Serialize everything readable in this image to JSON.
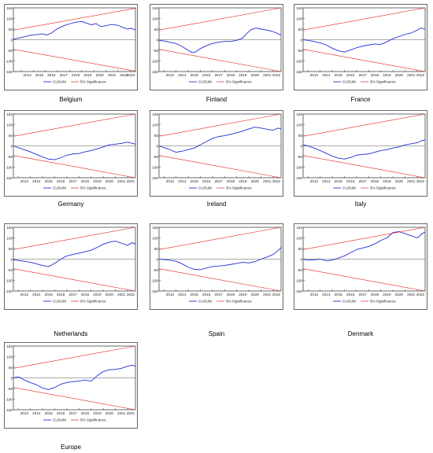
{
  "legend": {
    "cusum_label": "CUSUM",
    "sig_label": "5% Significance",
    "cusum_color": "#1f2fd6",
    "sig_color": "#e2231a"
  },
  "chart_data": [
    {
      "type": "line",
      "caption": "Belgium",
      "years": [
        "2014",
        "2015",
        "2016",
        "2017",
        "2018",
        "2019",
        "2020",
        "2021",
        "2022",
        "2023"
      ],
      "x_start": 2013.35,
      "x_end": 2023.45,
      "ylim": [
        -150,
        150
      ],
      "yticks": [
        150,
        100,
        50,
        0,
        -50,
        -100,
        -150
      ],
      "series": [
        {
          "name": "CUSUM",
          "x": [
            2013.35,
            2013.8,
            2014.3,
            2014.8,
            2015.3,
            2015.8,
            2016.1,
            2016.5,
            2017.0,
            2017.5,
            2018.0,
            2018.5,
            2019.0,
            2019.4,
            2019.8,
            2020.2,
            2020.6,
            2021.0,
            2021.5,
            2022.0,
            2022.4,
            2022.8,
            2023.1,
            2023.45
          ],
          "y": [
            2,
            8,
            14,
            22,
            24,
            28,
            22,
            32,
            52,
            65,
            75,
            82,
            86,
            78,
            70,
            76,
            62,
            66,
            72,
            68,
            58,
            50,
            54,
            46
          ]
        },
        {
          "name": "5% Significance",
          "x": [
            2013.35,
            2023.45
          ],
          "y": [
            45,
            148
          ]
        },
        {
          "name": "5% Significance",
          "x": [
            2013.35,
            2023.45
          ],
          "y": [
            -45,
            -148
          ]
        }
      ]
    },
    {
      "type": "line",
      "caption": "Finland",
      "years": [
        "2013",
        "2014",
        "2015",
        "2016",
        "2017",
        "2018",
        "2019",
        "2020",
        "2021",
        "2022"
      ],
      "x_start": 2012.6,
      "x_end": 2022.65,
      "ylim": [
        -150,
        150
      ],
      "yticks": [
        150,
        100,
        50,
        0,
        -50,
        -100,
        -150
      ],
      "series": [
        {
          "name": "CUSUM",
          "x": [
            2012.6,
            2013.0,
            2013.5,
            2014.0,
            2014.5,
            2015.0,
            2015.3,
            2015.6,
            2016.0,
            2016.5,
            2017.0,
            2017.5,
            2018.0,
            2018.5,
            2019.0,
            2019.5,
            2019.8,
            2020.2,
            2020.6,
            2021.0,
            2021.5,
            2022.0,
            2022.4,
            2022.65
          ],
          "y": [
            -3,
            -6,
            -12,
            -18,
            -32,
            -50,
            -60,
            -58,
            -42,
            -28,
            -18,
            -12,
            -8,
            -8,
            -3,
            8,
            28,
            48,
            55,
            50,
            45,
            38,
            28,
            22
          ]
        },
        {
          "name": "5% Significance",
          "x": [
            2012.6,
            2022.65
          ],
          "y": [
            45,
            150
          ]
        },
        {
          "name": "5% Significance",
          "x": [
            2012.6,
            2022.65
          ],
          "y": [
            -45,
            -150
          ]
        }
      ]
    },
    {
      "type": "line",
      "caption": "France",
      "years": [
        "2013",
        "2014",
        "2015",
        "2016",
        "2017",
        "2018",
        "2019",
        "2020",
        "2021",
        "2022"
      ],
      "x_start": 2012.6,
      "x_end": 2022.65,
      "ylim": [
        -150,
        150
      ],
      "yticks": [
        150,
        100,
        50,
        0,
        -50,
        -100,
        -150
      ],
      "series": [
        {
          "name": "CUSUM",
          "x": [
            2012.6,
            2013.0,
            2013.5,
            2014.0,
            2014.5,
            2015.0,
            2015.5,
            2016.0,
            2016.5,
            2017.0,
            2017.5,
            2018.0,
            2018.5,
            2019.0,
            2019.5,
            2020.0,
            2020.5,
            2021.0,
            2021.5,
            2022.0,
            2022.3,
            2022.65
          ],
          "y": [
            0,
            -3,
            -8,
            -15,
            -25,
            -40,
            -52,
            -58,
            -48,
            -38,
            -30,
            -25,
            -20,
            -22,
            -10,
            5,
            15,
            25,
            32,
            45,
            55,
            50
          ]
        },
        {
          "name": "5% Significance",
          "x": [
            2012.6,
            2022.65
          ],
          "y": [
            45,
            150
          ]
        },
        {
          "name": "5% Significance",
          "x": [
            2012.6,
            2022.65
          ],
          "y": [
            -45,
            -150
          ]
        }
      ]
    },
    {
      "type": "line",
      "caption": "Germany",
      "years": [
        "2013",
        "2014",
        "2015",
        "2016",
        "2017",
        "2018",
        "2019",
        "2020",
        "2021",
        "2022"
      ],
      "x_start": 2012.6,
      "x_end": 2022.65,
      "ylim": [
        -150,
        150
      ],
      "yticks": [
        150,
        100,
        50,
        0,
        -50,
        -100,
        -150
      ],
      "series": [
        {
          "name": "CUSUM",
          "x": [
            2012.6,
            2013.0,
            2013.5,
            2014.0,
            2014.5,
            2015.0,
            2015.5,
            2016.0,
            2016.5,
            2017.0,
            2017.5,
            2018.0,
            2018.5,
            2019.0,
            2019.5,
            2020.0,
            2020.5,
            2021.0,
            2021.5,
            2022.0,
            2022.4,
            2022.65
          ],
          "y": [
            0,
            -8,
            -18,
            -28,
            -40,
            -52,
            -62,
            -65,
            -56,
            -44,
            -38,
            -36,
            -28,
            -22,
            -14,
            -5,
            5,
            8,
            12,
            18,
            12,
            8
          ]
        },
        {
          "name": "5% Significance",
          "x": [
            2012.6,
            2022.65
          ],
          "y": [
            45,
            150
          ]
        },
        {
          "name": "5% Significance",
          "x": [
            2012.6,
            2022.65
          ],
          "y": [
            -45,
            -150
          ]
        }
      ]
    },
    {
      "type": "line",
      "caption": "Ireland",
      "years": [
        "2013",
        "2014",
        "2015",
        "2016",
        "2017",
        "2018",
        "2019",
        "2020",
        "2021",
        "2022"
      ],
      "x_start": 2012.6,
      "x_end": 2022.65,
      "ylim": [
        -150,
        150
      ],
      "yticks": [
        150,
        100,
        50,
        0,
        -50,
        -100,
        -150
      ],
      "series": [
        {
          "name": "CUSUM",
          "x": [
            2012.6,
            2013.0,
            2013.5,
            2014.0,
            2014.5,
            2015.0,
            2015.5,
            2016.0,
            2016.5,
            2017.0,
            2017.5,
            2018.0,
            2018.5,
            2019.0,
            2019.5,
            2020.0,
            2020.5,
            2021.0,
            2021.5,
            2022.0,
            2022.4,
            2022.65
          ],
          "y": [
            0,
            -8,
            -18,
            -30,
            -25,
            -18,
            -10,
            5,
            20,
            35,
            44,
            48,
            55,
            62,
            70,
            80,
            88,
            84,
            78,
            74,
            84,
            80
          ]
        },
        {
          "name": "5% Significance",
          "x": [
            2012.6,
            2022.65
          ],
          "y": [
            45,
            150
          ]
        },
        {
          "name": "5% Significance",
          "x": [
            2012.6,
            2022.65
          ],
          "y": [
            -45,
            -150
          ]
        }
      ]
    },
    {
      "type": "line",
      "caption": "Italy",
      "years": [
        "2013",
        "2014",
        "2015",
        "2016",
        "2017",
        "2018",
        "2019",
        "2020",
        "2021",
        "2022"
      ],
      "x_start": 2012.6,
      "x_end": 2022.65,
      "ylim": [
        -150,
        150
      ],
      "yticks": [
        150,
        100,
        50,
        0,
        -50,
        -100,
        -150
      ],
      "series": [
        {
          "name": "CUSUM",
          "x": [
            2012.6,
            2013.0,
            2013.5,
            2014.0,
            2014.5,
            2015.0,
            2015.5,
            2016.0,
            2016.5,
            2017.0,
            2017.5,
            2018.0,
            2018.5,
            2019.0,
            2019.5,
            2020.0,
            2020.5,
            2021.0,
            2021.5,
            2022.0,
            2022.4,
            2022.65
          ],
          "y": [
            5,
            0,
            -10,
            -22,
            -35,
            -48,
            -58,
            -62,
            -55,
            -44,
            -40,
            -38,
            -30,
            -22,
            -18,
            -10,
            -5,
            5,
            10,
            15,
            25,
            28
          ]
        },
        {
          "name": "5% Significance",
          "x": [
            2012.6,
            2022.65
          ],
          "y": [
            45,
            150
          ]
        },
        {
          "name": "5% Significance",
          "x": [
            2012.6,
            2022.65
          ],
          "y": [
            -45,
            -150
          ]
        }
      ]
    },
    {
      "type": "line",
      "caption": "Netherlands",
      "years": [
        "2013",
        "2014",
        "2015",
        "2016",
        "2017",
        "2018",
        "2019",
        "2020",
        "2021",
        "2022"
      ],
      "x_start": 2012.6,
      "x_end": 2022.65,
      "ylim": [
        -150,
        150
      ],
      "yticks": [
        150,
        100,
        50,
        0,
        -50,
        -100,
        -150
      ],
      "series": [
        {
          "name": "CUSUM",
          "x": [
            2012.6,
            2013.0,
            2013.5,
            2014.0,
            2014.5,
            2015.0,
            2015.5,
            2016.0,
            2016.5,
            2017.0,
            2017.5,
            2018.0,
            2018.5,
            2019.0,
            2019.5,
            2020.0,
            2020.5,
            2021.0,
            2021.5,
            2022.0,
            2022.4,
            2022.65
          ],
          "y": [
            -3,
            -6,
            -10,
            -15,
            -22,
            -30,
            -35,
            -20,
            0,
            15,
            22,
            28,
            35,
            42,
            55,
            70,
            80,
            85,
            75,
            65,
            78,
            70
          ]
        },
        {
          "name": "5% Significance",
          "x": [
            2012.6,
            2022.65
          ],
          "y": [
            45,
            150
          ]
        },
        {
          "name": "5% Significance",
          "x": [
            2012.6,
            2022.65
          ],
          "y": [
            -45,
            -150
          ]
        }
      ]
    },
    {
      "type": "line",
      "caption": "Spain",
      "years": [
        "2013",
        "2014",
        "2015",
        "2016",
        "2017",
        "2018",
        "2019",
        "2020",
        "2021",
        "2022"
      ],
      "x_start": 2012.6,
      "x_end": 2022.65,
      "ylim": [
        -150,
        150
      ],
      "yticks": [
        150,
        100,
        50,
        0,
        -50,
        -100,
        -150
      ],
      "series": [
        {
          "name": "CUSUM",
          "x": [
            2012.6,
            2013.0,
            2013.5,
            2014.0,
            2014.5,
            2015.0,
            2015.5,
            2016.0,
            2016.5,
            2017.0,
            2017.5,
            2018.0,
            2018.5,
            2019.0,
            2019.5,
            2020.0,
            2020.5,
            2021.0,
            2021.5,
            2022.0,
            2022.4,
            2022.65
          ],
          "y": [
            0,
            -2,
            -5,
            -10,
            -22,
            -38,
            -48,
            -50,
            -42,
            -35,
            -32,
            -30,
            -25,
            -20,
            -15,
            -18,
            -12,
            0,
            10,
            22,
            40,
            55
          ]
        },
        {
          "name": "5% Significance",
          "x": [
            2012.6,
            2022.65
          ],
          "y": [
            45,
            150
          ]
        },
        {
          "name": "5% Significance",
          "x": [
            2012.6,
            2022.65
          ],
          "y": [
            -45,
            -150
          ]
        }
      ]
    },
    {
      "type": "line",
      "caption": "Denmark",
      "years": [
        "2013",
        "2014",
        "2015",
        "2016",
        "2017",
        "2018",
        "2019",
        "2020",
        "2021",
        "2022"
      ],
      "x_start": 2012.6,
      "x_end": 2022.65,
      "ylim": [
        -150,
        150
      ],
      "yticks": [
        150,
        100,
        50,
        0,
        -50,
        -100,
        -150
      ],
      "series": [
        {
          "name": "CUSUM",
          "x": [
            2012.6,
            2013.0,
            2013.5,
            2014.0,
            2014.5,
            2015.0,
            2015.5,
            2016.0,
            2016.5,
            2017.0,
            2017.5,
            2018.0,
            2018.5,
            2019.0,
            2019.5,
            2020.0,
            2020.5,
            2021.0,
            2021.5,
            2022.0,
            2022.4,
            2022.65
          ],
          "y": [
            0,
            -5,
            -3,
            0,
            -8,
            -5,
            5,
            15,
            30,
            45,
            52,
            60,
            72,
            88,
            100,
            125,
            130,
            120,
            110,
            100,
            120,
            128
          ]
        },
        {
          "name": "5% Significance",
          "x": [
            2012.6,
            2022.65
          ],
          "y": [
            45,
            150
          ]
        },
        {
          "name": "5% Significance",
          "x": [
            2012.6,
            2022.65
          ],
          "y": [
            -45,
            -150
          ]
        }
      ]
    },
    {
      "type": "line",
      "caption": "Europe",
      "years": [
        "2013",
        "2014",
        "2015",
        "2016",
        "2017",
        "2018",
        "2019",
        "2020",
        "2021",
        "2022"
      ],
      "x_start": 2012.6,
      "x_end": 2022.65,
      "ylim": [
        -150,
        150
      ],
      "yticks": [
        150,
        100,
        50,
        0,
        -50,
        -100,
        -150
      ],
      "series": [
        {
          "name": "CUSUM",
          "x": [
            2012.6,
            2013.0,
            2013.5,
            2014.0,
            2014.5,
            2015.0,
            2015.5,
            2016.0,
            2016.5,
            2017.0,
            2017.5,
            2018.0,
            2018.5,
            2019.0,
            2019.5,
            2020.0,
            2020.5,
            2021.0,
            2021.5,
            2022.0,
            2022.4,
            2022.65
          ],
          "y": [
            0,
            5,
            -10,
            -22,
            -32,
            -48,
            -55,
            -45,
            -30,
            -22,
            -18,
            -15,
            -10,
            -15,
            10,
            30,
            38,
            40,
            45,
            55,
            60,
            55
          ]
        },
        {
          "name": "5% Significance",
          "x": [
            2012.6,
            2022.65
          ],
          "y": [
            45,
            150
          ]
        },
        {
          "name": "5% Significance",
          "x": [
            2012.6,
            2022.65
          ],
          "y": [
            -45,
            -150
          ]
        }
      ]
    }
  ]
}
